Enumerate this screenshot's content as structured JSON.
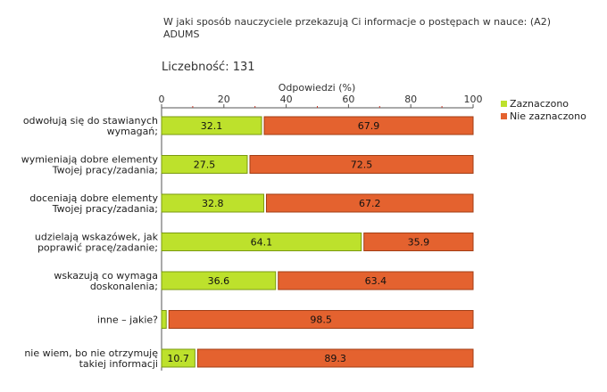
{
  "chart_data": {
    "type": "bar",
    "orientation": "horizontal",
    "stacked": true,
    "title_lines": [
      "W jaki sposób nauczyciele przekazują Ci informacje o postępach w nauce: (A2)",
      "ADUMS"
    ],
    "count_label": "Liczebność: 131",
    "xlabel": "Odpowiedzi (%)",
    "xlim": [
      0,
      100
    ],
    "xticks": [
      0,
      20,
      40,
      60,
      80,
      100
    ],
    "legend_position": "top-right",
    "categories": [
      [
        "odwołują się do stawianych",
        "wymagań;"
      ],
      [
        "wymieniają dobre elementy",
        "Twojej pracy/zadania;"
      ],
      [
        "doceniają dobre elementy",
        "Twojej pracy/zadania;"
      ],
      [
        "udzielają wskazówek, jak",
        "poprawić pracę/zadanie;"
      ],
      [
        "wskazują co wymaga",
        "doskonalenia;"
      ],
      [
        "inne – jakie?"
      ],
      [
        "nie wiem, bo nie otrzymuję",
        "takiej informacji"
      ]
    ],
    "series": [
      {
        "name": "Zaznaczono",
        "color": "#bde12c",
        "stroke": "#7a9a10",
        "values": [
          32.1,
          27.5,
          32.8,
          64.1,
          36.6,
          1.5,
          10.7
        ],
        "labels": [
          "32.1",
          "27.5",
          "32.8",
          "64.1",
          "36.6",
          "",
          "10.7"
        ]
      },
      {
        "name": "Nie zaznaczono",
        "color": "#e4622f",
        "stroke": "#a23d14",
        "values": [
          67.9,
          72.5,
          67.2,
          35.9,
          63.4,
          98.5,
          89.3
        ],
        "labels": [
          "67.9",
          "72.5",
          "67.2",
          "35.9",
          "63.4",
          "98.5",
          "89.3"
        ]
      }
    ]
  }
}
